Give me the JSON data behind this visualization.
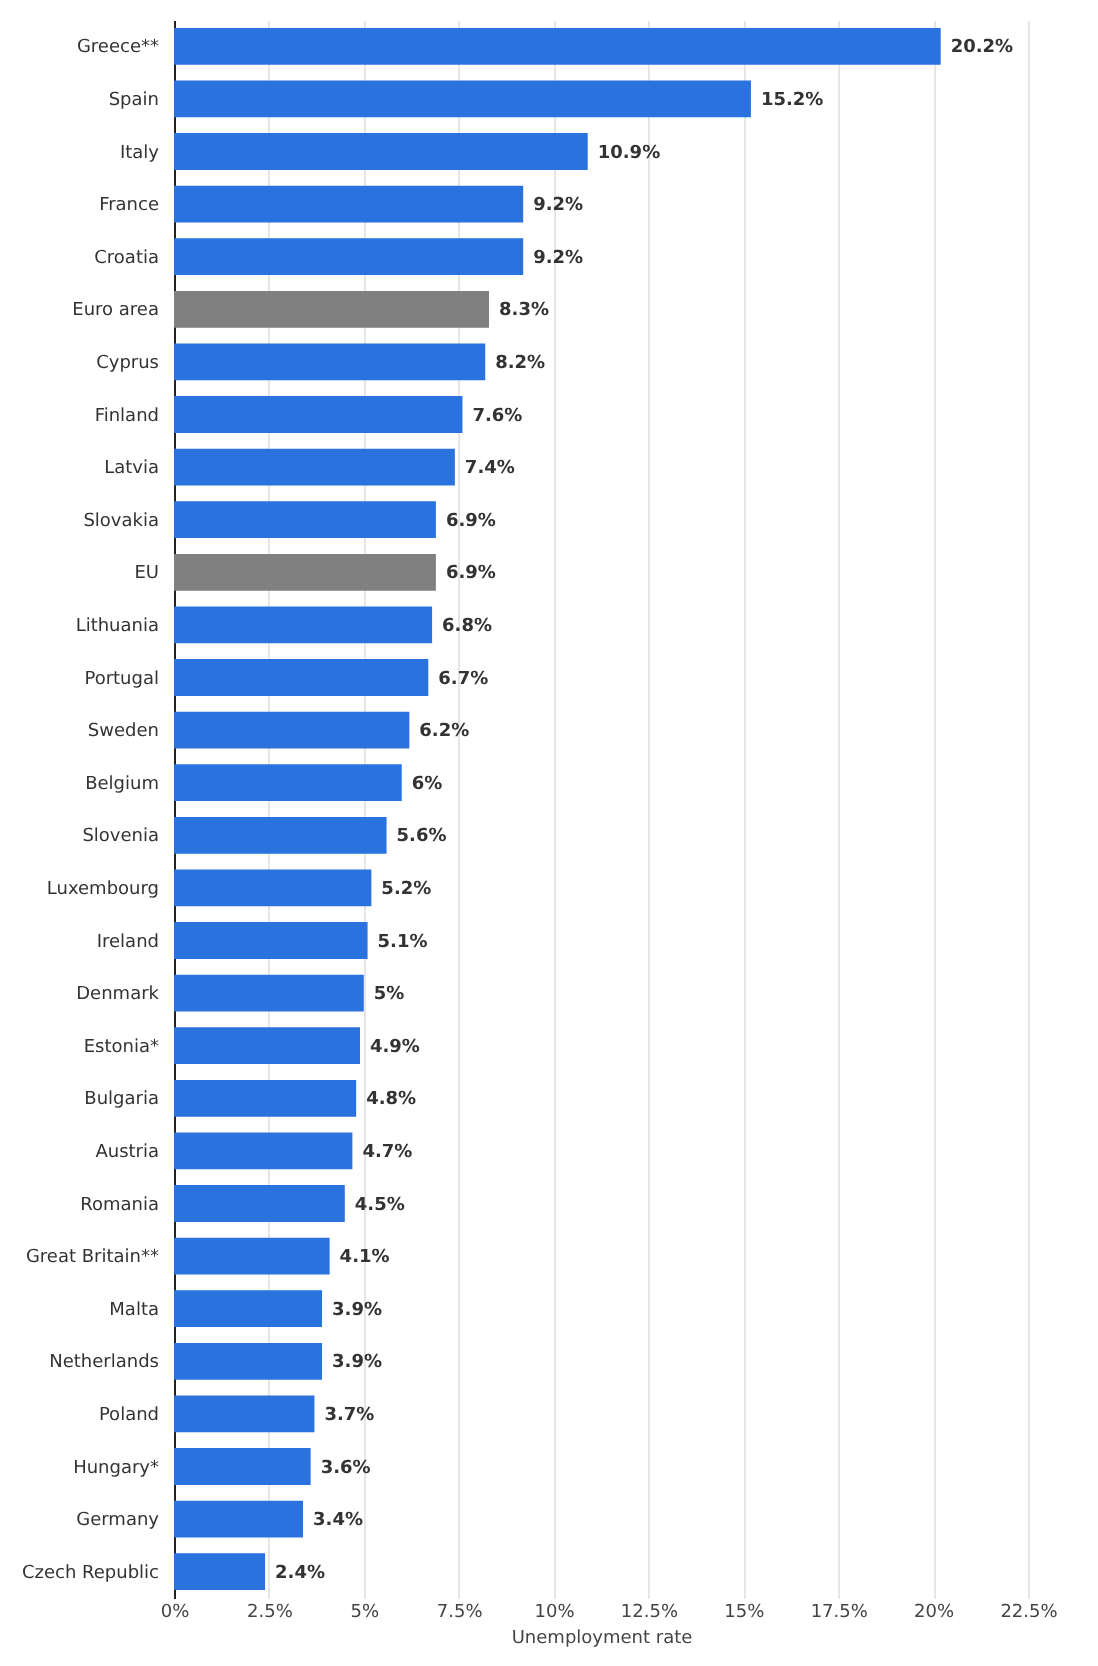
{
  "chart_data": {
    "type": "bar",
    "orientation": "horizontal",
    "xlabel": "Unemployment rate",
    "categories": [
      "Greece**",
      "Spain",
      "Italy",
      "France",
      "Croatia",
      "Euro area",
      "Cyprus",
      "Finland",
      "Latvia",
      "Slovakia",
      "EU",
      "Lithuania",
      "Portugal",
      "Sweden",
      "Belgium",
      "Slovenia",
      "Luxembourg",
      "Ireland",
      "Denmark",
      "Estonia*",
      "Bulgaria",
      "Austria",
      "Romania",
      "Great Britain**",
      "Malta",
      "Netherlands",
      "Poland",
      "Hungary*",
      "Germany",
      "Czech Republic"
    ],
    "values": [
      20.2,
      15.2,
      10.9,
      9.2,
      9.2,
      8.3,
      8.2,
      7.6,
      7.4,
      6.9,
      6.9,
      6.8,
      6.7,
      6.2,
      6,
      5.6,
      5.2,
      5.1,
      5,
      4.9,
      4.8,
      4.7,
      4.5,
      4.1,
      3.9,
      3.9,
      3.7,
      3.6,
      3.4,
      2.4
    ],
    "value_labels": [
      "20.2%",
      "15.2%",
      "10.9%",
      "9.2%",
      "9.2%",
      "8.3%",
      "8.2%",
      "7.6%",
      "7.4%",
      "6.9%",
      "6.9%",
      "6.8%",
      "6.7%",
      "6.2%",
      "6%",
      "5.6%",
      "5.2%",
      "5.1%",
      "5%",
      "4.9%",
      "4.8%",
      "4.7%",
      "4.5%",
      "4.1%",
      "3.9%",
      "3.9%",
      "3.7%",
      "3.6%",
      "3.4%",
      "2.4%"
    ],
    "colors": [
      "#2a72de",
      "#2a72de",
      "#2a72de",
      "#2a72de",
      "#2a72de",
      "#808080",
      "#2a72de",
      "#2a72de",
      "#2a72de",
      "#2a72de",
      "#808080",
      "#2a72de",
      "#2a72de",
      "#2a72de",
      "#2a72de",
      "#2a72de",
      "#2a72de",
      "#2a72de",
      "#2a72de",
      "#2a72de",
      "#2a72de",
      "#2a72de",
      "#2a72de",
      "#2a72de",
      "#2a72de",
      "#2a72de",
      "#2a72de",
      "#2a72de",
      "#2a72de",
      "#2a72de"
    ],
    "xlim": [
      0,
      22.5
    ],
    "xticks": [
      {
        "value": 0,
        "label": "0%"
      },
      {
        "value": 2.5,
        "label": "2.5%"
      },
      {
        "value": 5,
        "label": "5%"
      },
      {
        "value": 7.5,
        "label": "7.5%"
      },
      {
        "value": 10,
        "label": "10%"
      },
      {
        "value": 12.5,
        "label": "12.5%"
      },
      {
        "value": 15,
        "label": "15%"
      },
      {
        "value": 17.5,
        "label": "17.5%"
      },
      {
        "value": 20,
        "label": "20%"
      },
      {
        "value": 22.5,
        "label": "22.5%"
      }
    ],
    "grid": "x",
    "legend": false
  }
}
